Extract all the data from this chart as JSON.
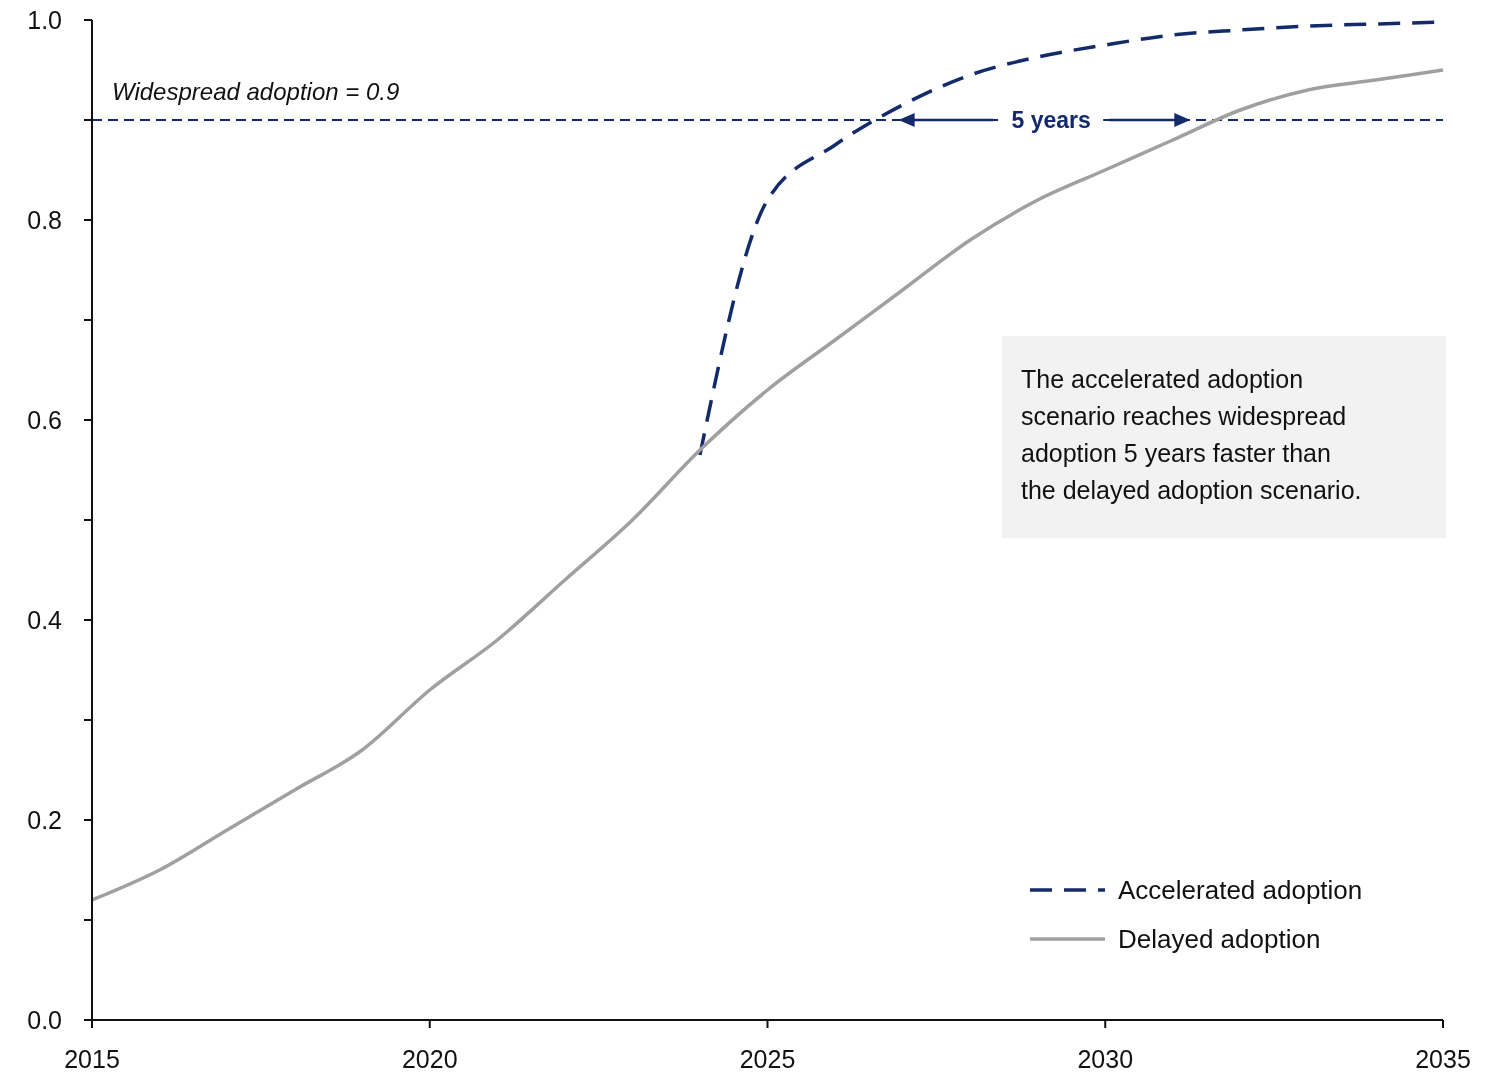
{
  "chart_data": {
    "type": "line",
    "xlim": [
      2015,
      2035
    ],
    "ylim": [
      0,
      1
    ],
    "xticks": [
      2015,
      2020,
      2025,
      2030,
      2035
    ],
    "yticks": [
      {
        "value": 0,
        "label": "0.0"
      },
      {
        "value": 0.1,
        "label": null
      },
      {
        "value": 0.2,
        "label": "0.2"
      },
      {
        "value": 0.3,
        "label": null
      },
      {
        "value": 0.4,
        "label": "0.4"
      },
      {
        "value": 0.5,
        "label": null
      },
      {
        "value": 0.6,
        "label": "0.6"
      },
      {
        "value": 0.7,
        "label": null
      },
      {
        "value": 0.8,
        "label": "0.8"
      },
      {
        "value": 0.9,
        "label": null
      },
      {
        "value": 1,
        "label": "1.0"
      }
    ],
    "series": [
      {
        "name": "Accelerated adoption",
        "color": "#132a6b",
        "line_style": "dashed",
        "x": [
          2024,
          2025,
          2026,
          2027,
          2028,
          2029,
          2030,
          2031,
          2032,
          2033,
          2034,
          2035
        ],
        "values": [
          0.565,
          0.82,
          0.875,
          0.915,
          0.945,
          0.963,
          0.975,
          0.985,
          0.99,
          0.994,
          0.996,
          0.998
        ]
      },
      {
        "name": "Delayed adoption",
        "color": "#a0a0a0",
        "line_style": "solid",
        "x": [
          2015,
          2016,
          2017,
          2018,
          2019,
          2020,
          2021,
          2022,
          2023,
          2024,
          2025,
          2026,
          2027,
          2028,
          2029,
          2030,
          2031,
          2032,
          2033,
          2034,
          2035
        ],
        "values": [
          0.12,
          0.15,
          0.19,
          0.23,
          0.27,
          0.33,
          0.38,
          0.44,
          0.5,
          0.57,
          0.63,
          0.68,
          0.73,
          0.78,
          0.82,
          0.85,
          0.88,
          0.91,
          0.93,
          0.94,
          0.95
        ]
      }
    ],
    "ref_lines": [
      {
        "axis": "y",
        "value": 0.9,
        "label": "Widespread adoption = 0.9",
        "color": "#132a6b",
        "line_style": "dashed"
      }
    ],
    "annotations": [
      {
        "text": "5 years",
        "x": 2029.2,
        "y": 0.9
      },
      "The accelerated adoption scenario reaches widespread adoption 5 years faster than the delayed adoption scenario."
    ],
    "legend": "bottom right",
    "grid": false
  }
}
